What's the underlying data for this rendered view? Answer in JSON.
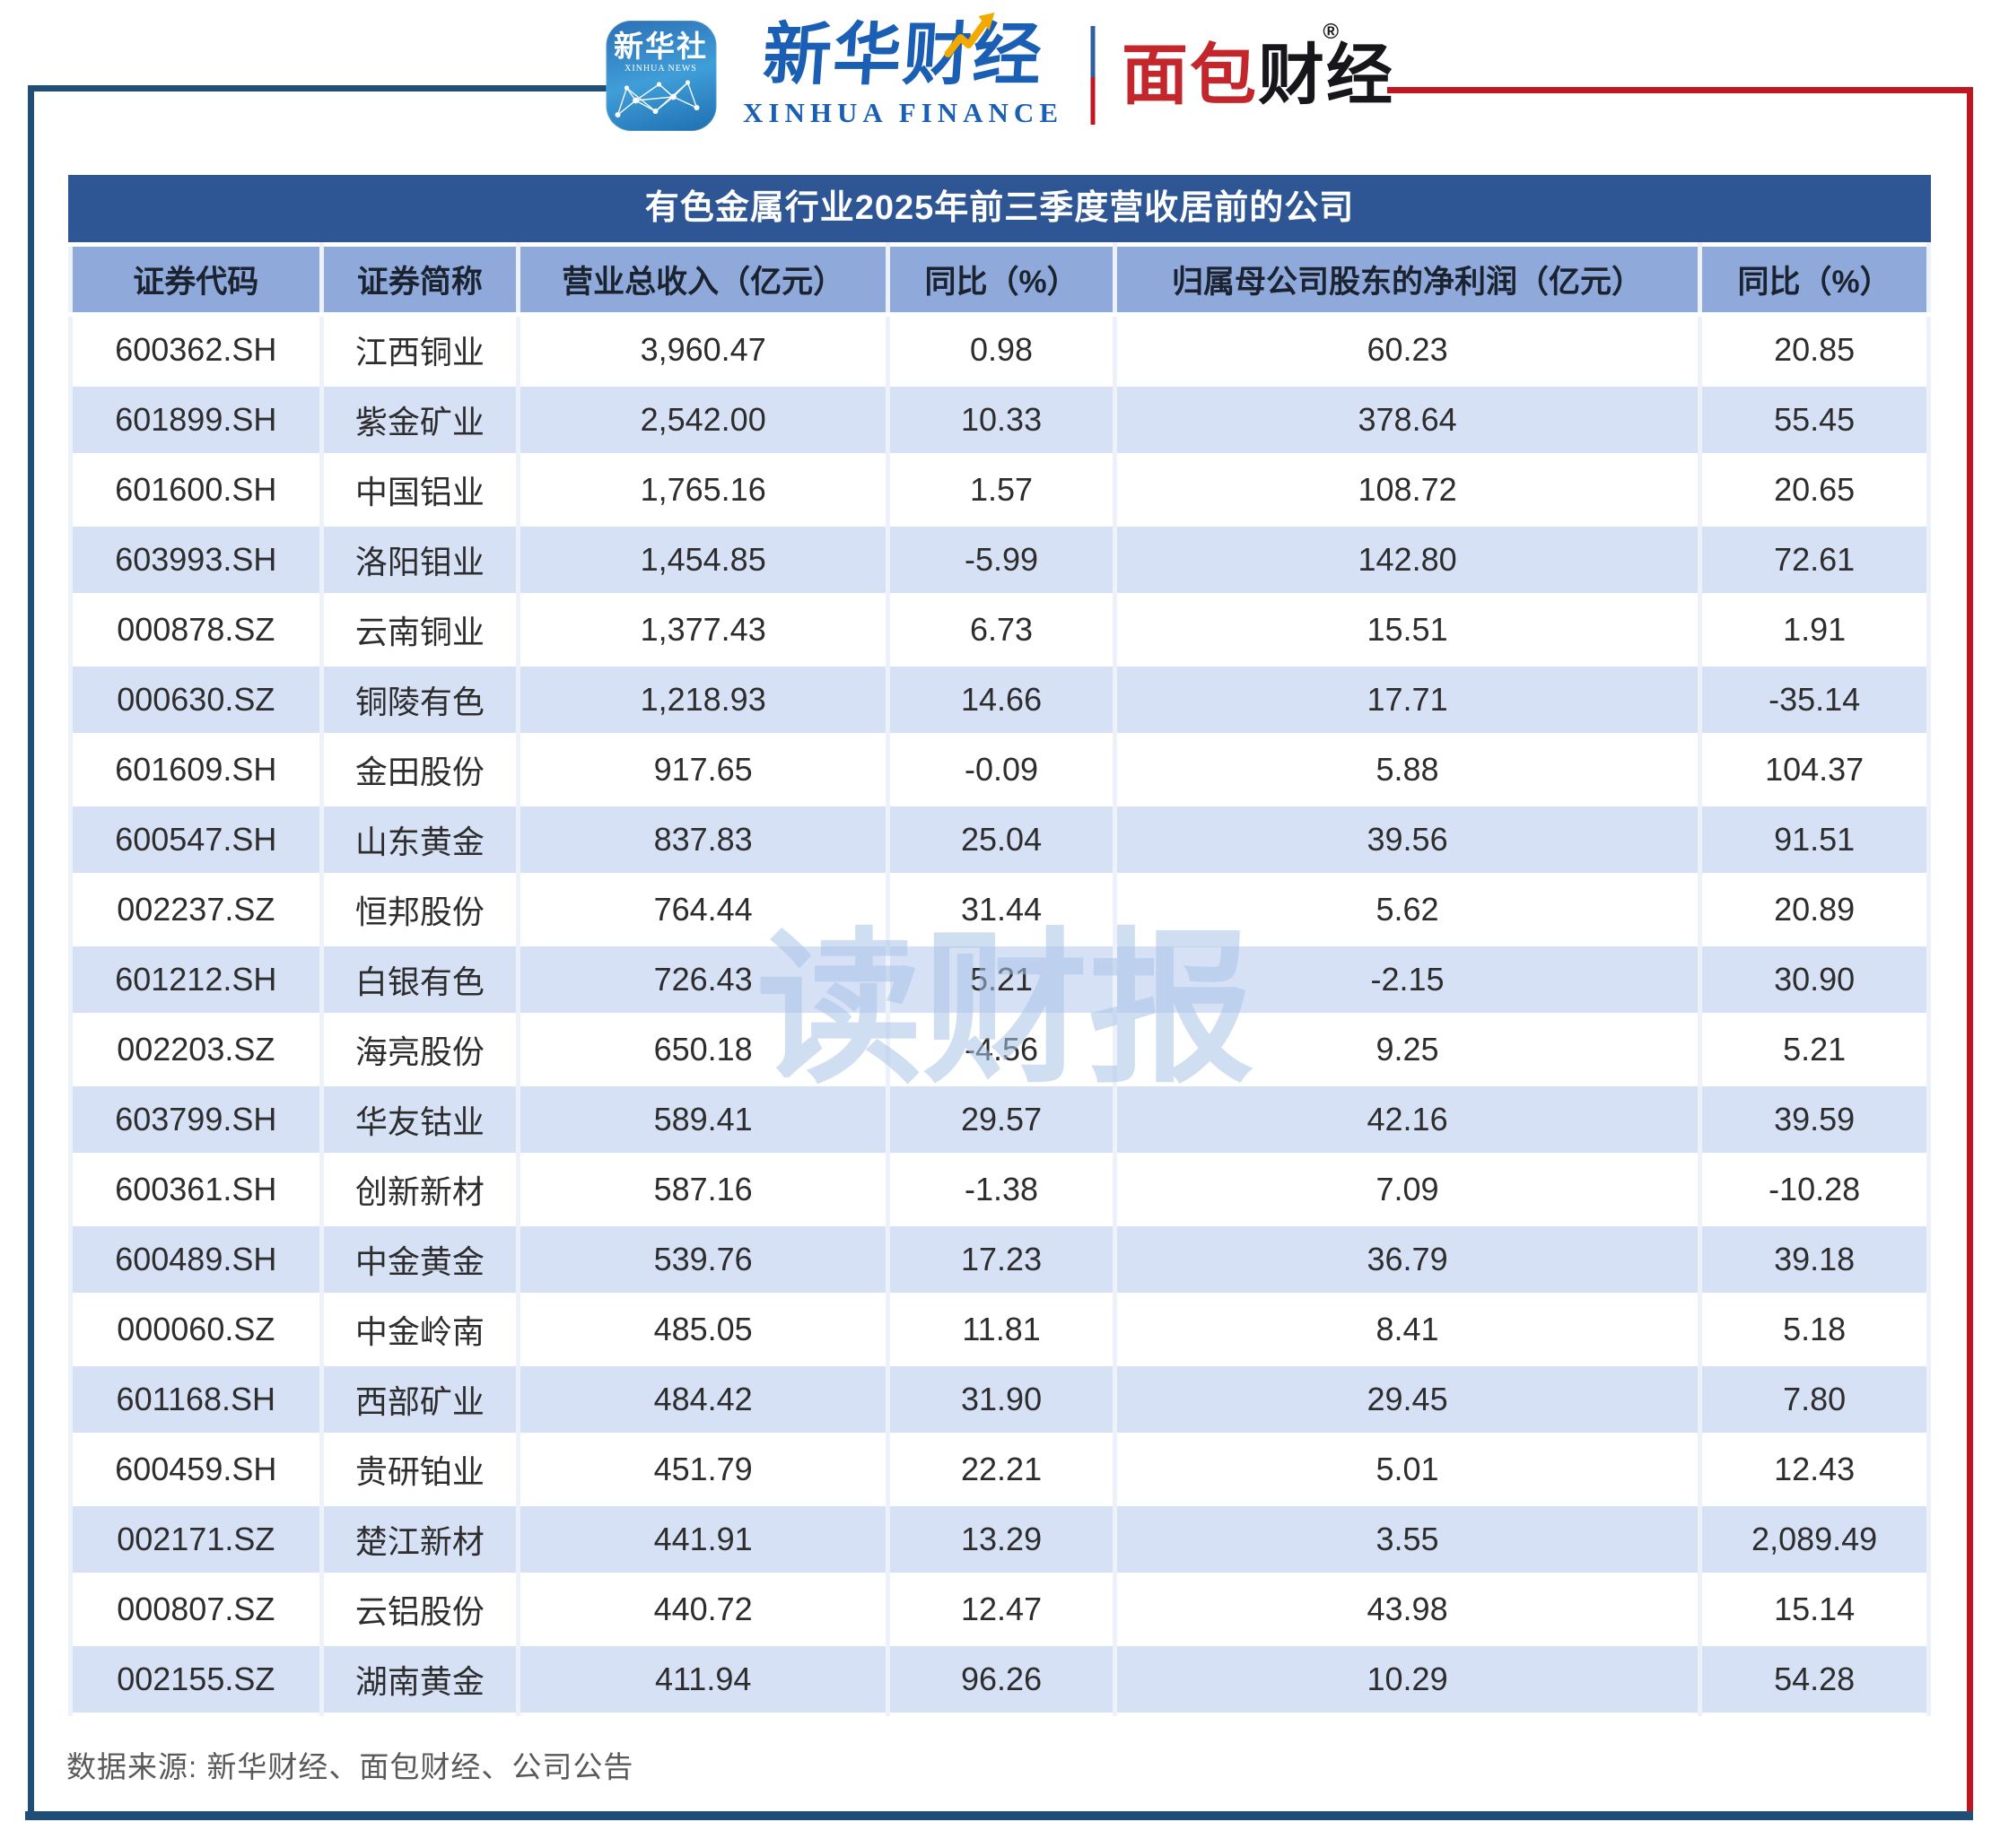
{
  "brand_header": {
    "xinhua_news_icon": {
      "title": "新华社",
      "subtitle": "XINHUA NEWS"
    },
    "xinhua_finance": {
      "cn": "新华财经",
      "en": "XINHUA FINANCE"
    },
    "bread_finance": {
      "cn_red": "面包",
      "cn_dark": "财经",
      "registered_mark": "®"
    }
  },
  "watermark": "读财报",
  "source_note": "数据来源: 新华财经、面包财经、公司公告",
  "colors": {
    "frame_blue": "#1f4e79",
    "frame_red": "#c0161f",
    "title_bg": "#2e5594",
    "header_bg": "#8fa9da",
    "band_bg": "#d7e1f6",
    "brand_blue": "#1a5fb4",
    "brand_red": "#c3272b",
    "watermark_blue": "#a8c3e6",
    "footer_text": "#595959"
  },
  "chart_data": {
    "type": "table",
    "title": "有色金属行业2025年前三季度营收居前的公司",
    "columns": [
      "证券代码",
      "证券简称",
      "营业总收入（亿元）",
      "同比（%）",
      "归属母公司股东的净利润（亿元）",
      "同比（%）"
    ],
    "rows": [
      [
        "600362.SH",
        "江西铜业",
        "3,960.47",
        "0.98",
        "60.23",
        "20.85"
      ],
      [
        "601899.SH",
        "紫金矿业",
        "2,542.00",
        "10.33",
        "378.64",
        "55.45"
      ],
      [
        "601600.SH",
        "中国铝业",
        "1,765.16",
        "1.57",
        "108.72",
        "20.65"
      ],
      [
        "603993.SH",
        "洛阳钼业",
        "1,454.85",
        "-5.99",
        "142.80",
        "72.61"
      ],
      [
        "000878.SZ",
        "云南铜业",
        "1,377.43",
        "6.73",
        "15.51",
        "1.91"
      ],
      [
        "000630.SZ",
        "铜陵有色",
        "1,218.93",
        "14.66",
        "17.71",
        "-35.14"
      ],
      [
        "601609.SH",
        "金田股份",
        "917.65",
        "-0.09",
        "5.88",
        "104.37"
      ],
      [
        "600547.SH",
        "山东黄金",
        "837.83",
        "25.04",
        "39.56",
        "91.51"
      ],
      [
        "002237.SZ",
        "恒邦股份",
        "764.44",
        "31.44",
        "5.62",
        "20.89"
      ],
      [
        "601212.SH",
        "白银有色",
        "726.43",
        "5.21",
        "-2.15",
        "30.90"
      ],
      [
        "002203.SZ",
        "海亮股份",
        "650.18",
        "-4.56",
        "9.25",
        "5.21"
      ],
      [
        "603799.SH",
        "华友钴业",
        "589.41",
        "29.57",
        "42.16",
        "39.59"
      ],
      [
        "600361.SH",
        "创新新材",
        "587.16",
        "-1.38",
        "7.09",
        "-10.28"
      ],
      [
        "600489.SH",
        "中金黄金",
        "539.76",
        "17.23",
        "36.79",
        "39.18"
      ],
      [
        "000060.SZ",
        "中金岭南",
        "485.05",
        "11.81",
        "8.41",
        "5.18"
      ],
      [
        "601168.SH",
        "西部矿业",
        "484.42",
        "31.90",
        "29.45",
        "7.80"
      ],
      [
        "600459.SH",
        "贵研铂业",
        "451.79",
        "22.21",
        "5.01",
        "12.43"
      ],
      [
        "002171.SZ",
        "楚江新材",
        "441.91",
        "13.29",
        "3.55",
        "2,089.49"
      ],
      [
        "000807.SZ",
        "云铝股份",
        "440.72",
        "12.47",
        "43.98",
        "15.14"
      ],
      [
        "002155.SZ",
        "湖南黄金",
        "411.94",
        "96.26",
        "10.29",
        "54.28"
      ]
    ],
    "row_field_names": [
      "code",
      "name",
      "revenue",
      "revenue-yoy",
      "net-profit",
      "net-profit-yoy"
    ],
    "source": "数据来源: 新华财经、面包财经、公司公告"
  }
}
